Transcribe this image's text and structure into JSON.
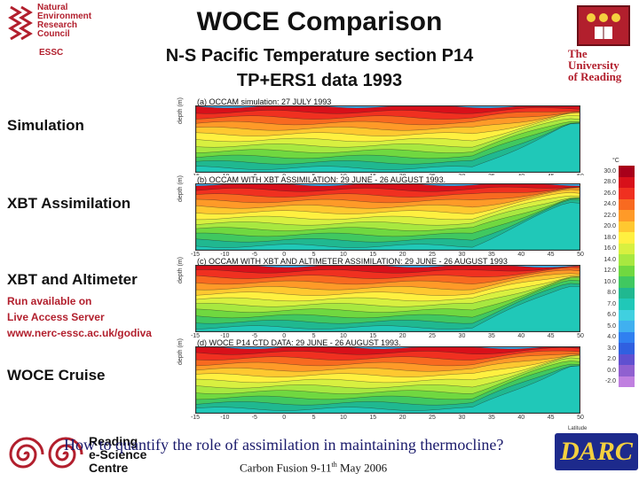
{
  "header": {
    "title": "WOCE Comparison",
    "subtitle1": "N-S Pacific Temperature section P14",
    "subtitle2": "TP+ERS1 data 1993",
    "nerc_lines": [
      "Natural",
      "Environment",
      "Research",
      "Council"
    ],
    "essc": "ESSC",
    "reading_lines": [
      "The",
      "University",
      "of Reading"
    ]
  },
  "labels": {
    "simulation": "Simulation",
    "xbt": "XBT Assimilation",
    "xbt_alt": "XBT and Altimeter",
    "run_available": "Run available on",
    "las": "Live Access Server",
    "url": "www.nerc-essc.ac.uk/godiva",
    "woce_cruise": "WOCE Cruise"
  },
  "panels": [
    {
      "caption": "(a) OCCAM simulation: 27 JULY 1993"
    },
    {
      "caption": "(b) OCCAM WITH XBT ASSIMILATION: 29 JUNE - 26 AUGUST 1993."
    },
    {
      "caption": "(c) OCCAM WITH XBT AND ALTIMETER ASSIMILATION: 29 JUNE - 26 AUGUST 1993"
    },
    {
      "caption": "(d) WOCE P14 CTD DATA: 29 JUNE - 26 AUGUST 1993."
    }
  ],
  "axis": {
    "xticks": [
      "-15",
      "-10",
      "-5",
      "0",
      "5",
      "10",
      "15",
      "20",
      "25",
      "30",
      "35",
      "40",
      "45",
      "50"
    ],
    "ylabel": "depth (m)",
    "xlabel": "Latitude",
    "cb_unit": "°C"
  },
  "colorbar": {
    "labels": [
      "30.0",
      "28.0",
      "26.0",
      "24.0",
      "22.0",
      "20.0",
      "18.0",
      "16.0",
      "14.0",
      "12.0",
      "10.0",
      "8.0",
      "7.0",
      "6.0",
      "5.0",
      "4.0",
      "3.0",
      "2.0",
      "0.0",
      "-2.0"
    ],
    "colors": [
      "#a8001a",
      "#d8101a",
      "#f03020",
      "#f86a20",
      "#ff9a28",
      "#ffc830",
      "#fff040",
      "#d8f040",
      "#a8e840",
      "#70d840",
      "#40c860",
      "#20b890",
      "#20c8b8",
      "#40d0e0",
      "#40b0f0",
      "#3080f0",
      "#3060e0",
      "#6050d0",
      "#9060d0",
      "#c080e0"
    ]
  },
  "footer": {
    "question": "How to quantify the role of assimilation in maintaining thermocline?",
    "conference": "Carbon Fusion 9-11",
    "conf_sup": "th",
    "conf_tail": " May 2006",
    "resc_lines": [
      "Reading",
      "e-Science",
      "Centre"
    ],
    "darc": "DARC"
  }
}
